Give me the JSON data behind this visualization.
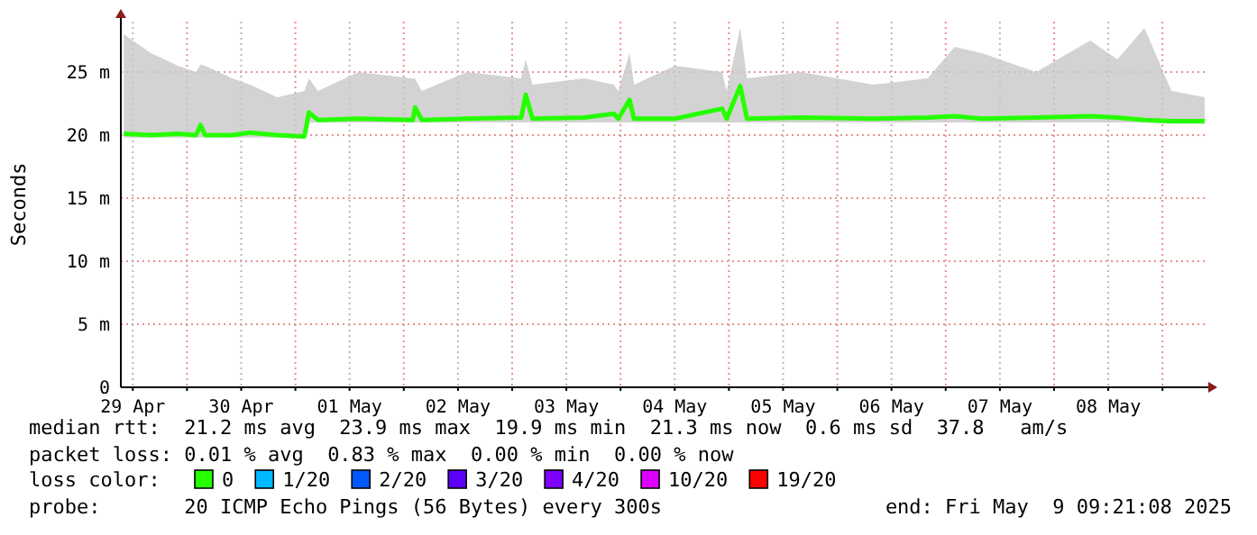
{
  "chart_data": {
    "type": "line",
    "ylabel": "Seconds",
    "legend_title": "loss color:",
    "legend": "bottom",
    "grid": true,
    "x": [
      "2025-04-29T10:00",
      "2025-04-29T16:00",
      "2025-04-29T22:00",
      "2025-04-30T02:00",
      "2025-04-30T03:00",
      "2025-04-30T04:00",
      "2025-04-30T10:00",
      "2025-04-30T14:00",
      "2025-04-30T20:00",
      "2025-05-01T02:00",
      "2025-05-01T03:00",
      "2025-05-01T05:00",
      "2025-05-01T14:00",
      "2025-05-02T02:00",
      "2025-05-02T02:30",
      "2025-05-02T04:00",
      "2025-05-02T14:00",
      "2025-05-03T02:00",
      "2025-05-03T03:00",
      "2025-05-03T04:30",
      "2025-05-03T16:00",
      "2025-05-03T22:30",
      "2025-05-03T23:30",
      "2025-05-04T02:00",
      "2025-05-04T03:00",
      "2025-05-04T12:00",
      "2025-05-04T22:30",
      "2025-05-04T23:30",
      "2025-05-05T02:30",
      "2025-05-05T04:00",
      "2025-05-05T16:00",
      "2025-05-06T08:00",
      "2025-05-06T20:00",
      "2025-05-07T02:00",
      "2025-05-07T08:00",
      "2025-05-07T20:00",
      "2025-05-08T08:00",
      "2025-05-08T14:00",
      "2025-05-08T20:00",
      "2025-05-09T02:00",
      "2025-05-09T09:21"
    ],
    "series": [
      {
        "name": "0",
        "color": "#26ff00",
        "values": [
          20.1,
          20.0,
          20.1,
          20.0,
          20.8,
          20.0,
          20.0,
          20.2,
          20.0,
          19.9,
          21.8,
          21.2,
          21.3,
          21.2,
          22.2,
          21.2,
          21.3,
          21.4,
          23.2,
          21.3,
          21.4,
          21.7,
          21.3,
          22.8,
          21.3,
          21.3,
          22.1,
          21.3,
          23.9,
          21.3,
          21.4,
          21.3,
          21.4,
          21.5,
          21.3,
          21.4,
          21.5,
          21.4,
          21.2,
          21.1,
          21.1
        ],
        "lower": [
          19.8,
          19.8,
          19.8,
          19.8,
          19.8,
          19.8,
          19.8,
          19.8,
          19.8,
          19.7,
          21.0,
          21.0,
          21.0,
          21.0,
          21.0,
          21.0,
          21.0,
          21.0,
          21.0,
          21.0,
          21.0,
          21.0,
          21.0,
          21.0,
          21.0,
          21.0,
          21.0,
          21.0,
          21.0,
          21.0,
          21.0,
          21.0,
          21.0,
          21.0,
          21.0,
          21.0,
          21.0,
          21.0,
          21.0,
          20.9,
          20.9
        ],
        "upper": [
          28.0,
          26.5,
          25.5,
          25.0,
          25.6,
          25.5,
          24.5,
          24.0,
          23.0,
          23.5,
          24.5,
          23.5,
          25.0,
          24.5,
          24.5,
          23.5,
          25.0,
          24.5,
          26.0,
          24.0,
          24.5,
          24.0,
          23.5,
          26.5,
          24.0,
          25.5,
          25.0,
          23.5,
          28.5,
          24.5,
          25.0,
          24.0,
          24.5,
          27.0,
          26.5,
          25.0,
          27.5,
          26.0,
          28.5,
          23.5,
          23.0
        ]
      },
      {
        "name": "1/20",
        "color": "#00b8ff",
        "values": [
          null,
          null,
          null,
          null,
          null,
          null,
          null,
          null,
          null,
          null,
          null,
          null,
          null,
          null,
          null,
          null,
          null,
          null,
          null,
          null,
          null,
          null,
          null,
          null,
          null,
          null,
          null,
          null,
          null,
          null,
          null,
          null,
          null,
          null,
          null,
          null,
          null,
          null,
          null,
          null,
          null
        ]
      },
      {
        "name": "2/20",
        "color": "#0059ff",
        "values": [
          null,
          null,
          null,
          null,
          null,
          null,
          null,
          null,
          null,
          null,
          null,
          null,
          null,
          null,
          null,
          null,
          null,
          null,
          null,
          null,
          null,
          null,
          null,
          null,
          null,
          null,
          null,
          null,
          null,
          null,
          null,
          null,
          null,
          null,
          null,
          null,
          null,
          null,
          null,
          null,
          null
        ]
      },
      {
        "name": "3/20",
        "color": "#5e00ff",
        "values": [
          null,
          null,
          null,
          null,
          null,
          null,
          null,
          null,
          null,
          null,
          null,
          null,
          null,
          null,
          null,
          null,
          null,
          null,
          null,
          null,
          null,
          null,
          null,
          null,
          null,
          null,
          null,
          null,
          null,
          null,
          null,
          null,
          null,
          null,
          null,
          null,
          null,
          null,
          null,
          null,
          null
        ]
      },
      {
        "name": "4/20",
        "color": "#7e00ff",
        "values": [
          null,
          null,
          null,
          null,
          null,
          null,
          null,
          null,
          null,
          null,
          null,
          null,
          null,
          null,
          null,
          null,
          null,
          null,
          null,
          null,
          null,
          null,
          null,
          null,
          null,
          null,
          null,
          null,
          null,
          null,
          null,
          null,
          null,
          null,
          null,
          null,
          null,
          null,
          null,
          null,
          null
        ]
      },
      {
        "name": "10/20",
        "color": "#dd00ff",
        "values": [
          null,
          null,
          null,
          null,
          null,
          null,
          null,
          null,
          null,
          null,
          null,
          null,
          null,
          null,
          null,
          null,
          null,
          null,
          null,
          null,
          null,
          null,
          null,
          null,
          null,
          null,
          null,
          null,
          null,
          null,
          null,
          null,
          null,
          null,
          null,
          null,
          null,
          null,
          null,
          null,
          null
        ]
      },
      {
        "name": "19/20",
        "color": "#ff0000",
        "values": [
          null,
          null,
          null,
          null,
          null,
          null,
          null,
          null,
          null,
          null,
          null,
          null,
          null,
          null,
          null,
          null,
          null,
          null,
          null,
          null,
          null,
          null,
          null,
          null,
          null,
          null,
          null,
          null,
          null,
          null,
          null,
          null,
          null,
          null,
          null,
          null,
          null,
          null,
          null,
          null,
          null
        ]
      }
    ],
    "xlim": [
      "2025-04-29T09:21",
      "2025-05-09T09:21"
    ],
    "xticks": [
      {
        "value": "2025-04-29T12:00",
        "label": "29 Apr"
      },
      {
        "value": "2025-04-30T00:00",
        "label": null
      },
      {
        "value": "2025-04-30T12:00",
        "label": "30 Apr"
      },
      {
        "value": "2025-05-01T00:00",
        "label": null
      },
      {
        "value": "2025-05-01T12:00",
        "label": "01 May"
      },
      {
        "value": "2025-05-02T00:00",
        "label": null
      },
      {
        "value": "2025-05-02T12:00",
        "label": "02 May"
      },
      {
        "value": "2025-05-03T00:00",
        "label": null
      },
      {
        "value": "2025-05-03T12:00",
        "label": "03 May"
      },
      {
        "value": "2025-05-04T00:00",
        "label": null
      },
      {
        "value": "2025-05-04T12:00",
        "label": "04 May"
      },
      {
        "value": "2025-05-05T00:00",
        "label": null
      },
      {
        "value": "2025-05-05T12:00",
        "label": "05 May"
      },
      {
        "value": "2025-05-06T00:00",
        "label": null
      },
      {
        "value": "2025-05-06T12:00",
        "label": "06 May"
      },
      {
        "value": "2025-05-07T00:00",
        "label": null
      },
      {
        "value": "2025-05-07T12:00",
        "label": "07 May"
      },
      {
        "value": "2025-05-08T00:00",
        "label": null
      },
      {
        "value": "2025-05-08T12:00",
        "label": "08 May"
      },
      {
        "value": "2025-05-09T00:00",
        "label": null
      }
    ],
    "ylim": [
      0,
      29
    ],
    "yticks": [
      0,
      {
        "value": 5,
        "label": "5 m"
      },
      {
        "value": 10,
        "label": "10 m"
      },
      {
        "value": 15,
        "label": "15 m"
      },
      {
        "value": 20,
        "label": "20 m"
      },
      {
        "value": 25,
        "label": "25 m"
      }
    ],
    "annotations": [
      "median rtt:  21.2 ms avg  23.9 ms max  19.9 ms min  21.3 ms now  0.6 ms sd  37.8   am/s",
      "packet loss: 0.01 % avg  0.83 % max  0.00 % min  0.00 % now",
      "probe:       20 ICMP Echo Pings (56 Bytes) every 300s",
      "end: Fri May  9 09:21:08 2025"
    ]
  }
}
